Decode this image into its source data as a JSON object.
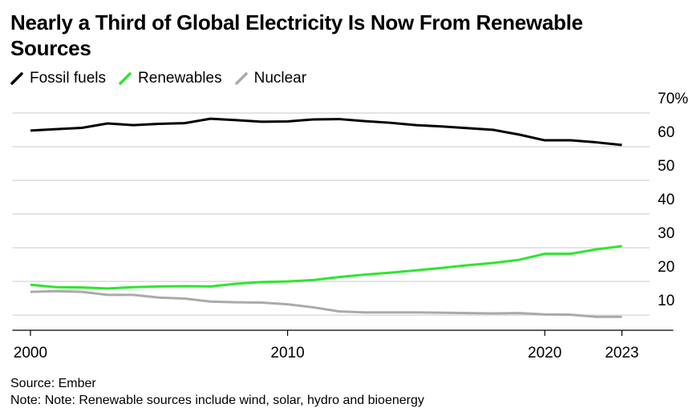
{
  "chart_data": {
    "type": "line",
    "title": "Nearly a Third of Global Electricity Is Now From Renewable Sources",
    "source": "Source: Ember",
    "note": "Note: Note: Renewable sources include wind, solar, hydro and bioenergy",
    "x": [
      2000,
      2001,
      2002,
      2003,
      2004,
      2005,
      2006,
      2007,
      2008,
      2009,
      2010,
      2011,
      2012,
      2013,
      2014,
      2015,
      2016,
      2017,
      2018,
      2019,
      2020,
      2021,
      2022,
      2023
    ],
    "series": [
      {
        "name": "Fossil fuels",
        "color": "#000000",
        "values": [
          64.8,
          65.2,
          65.6,
          66.9,
          66.4,
          66.8,
          67.0,
          68.3,
          67.9,
          67.4,
          67.5,
          68.1,
          68.2,
          67.6,
          67.1,
          66.4,
          66.0,
          65.5,
          65.0,
          63.6,
          61.9,
          61.9,
          61.3,
          60.5
        ]
      },
      {
        "name": "Renewables",
        "color": "#2ee62e",
        "values": [
          19.0,
          18.3,
          18.2,
          17.9,
          18.3,
          18.5,
          18.6,
          18.5,
          19.3,
          19.8,
          20.0,
          20.4,
          21.3,
          22.0,
          22.6,
          23.3,
          24.0,
          24.8,
          25.5,
          26.4,
          28.2,
          28.2,
          29.5,
          30.5
        ]
      },
      {
        "name": "Nuclear",
        "color": "#aaaaaa",
        "values": [
          16.9,
          17.1,
          16.9,
          16.0,
          16.0,
          15.2,
          14.9,
          14.0,
          13.8,
          13.7,
          13.2,
          12.3,
          11.1,
          10.8,
          10.8,
          10.8,
          10.7,
          10.6,
          10.5,
          10.6,
          10.2,
          10.1,
          9.5,
          9.5
        ]
      }
    ],
    "xlim": [
      1999.3,
      2025
    ],
    "xticks": [
      2000,
      2010,
      2020,
      2023
    ],
    "ylim": [
      5.5,
      72
    ],
    "yticks": [
      10,
      20,
      30,
      40,
      50,
      60,
      {
        "value": 70,
        "label": "70%"
      }
    ],
    "grid": true
  }
}
